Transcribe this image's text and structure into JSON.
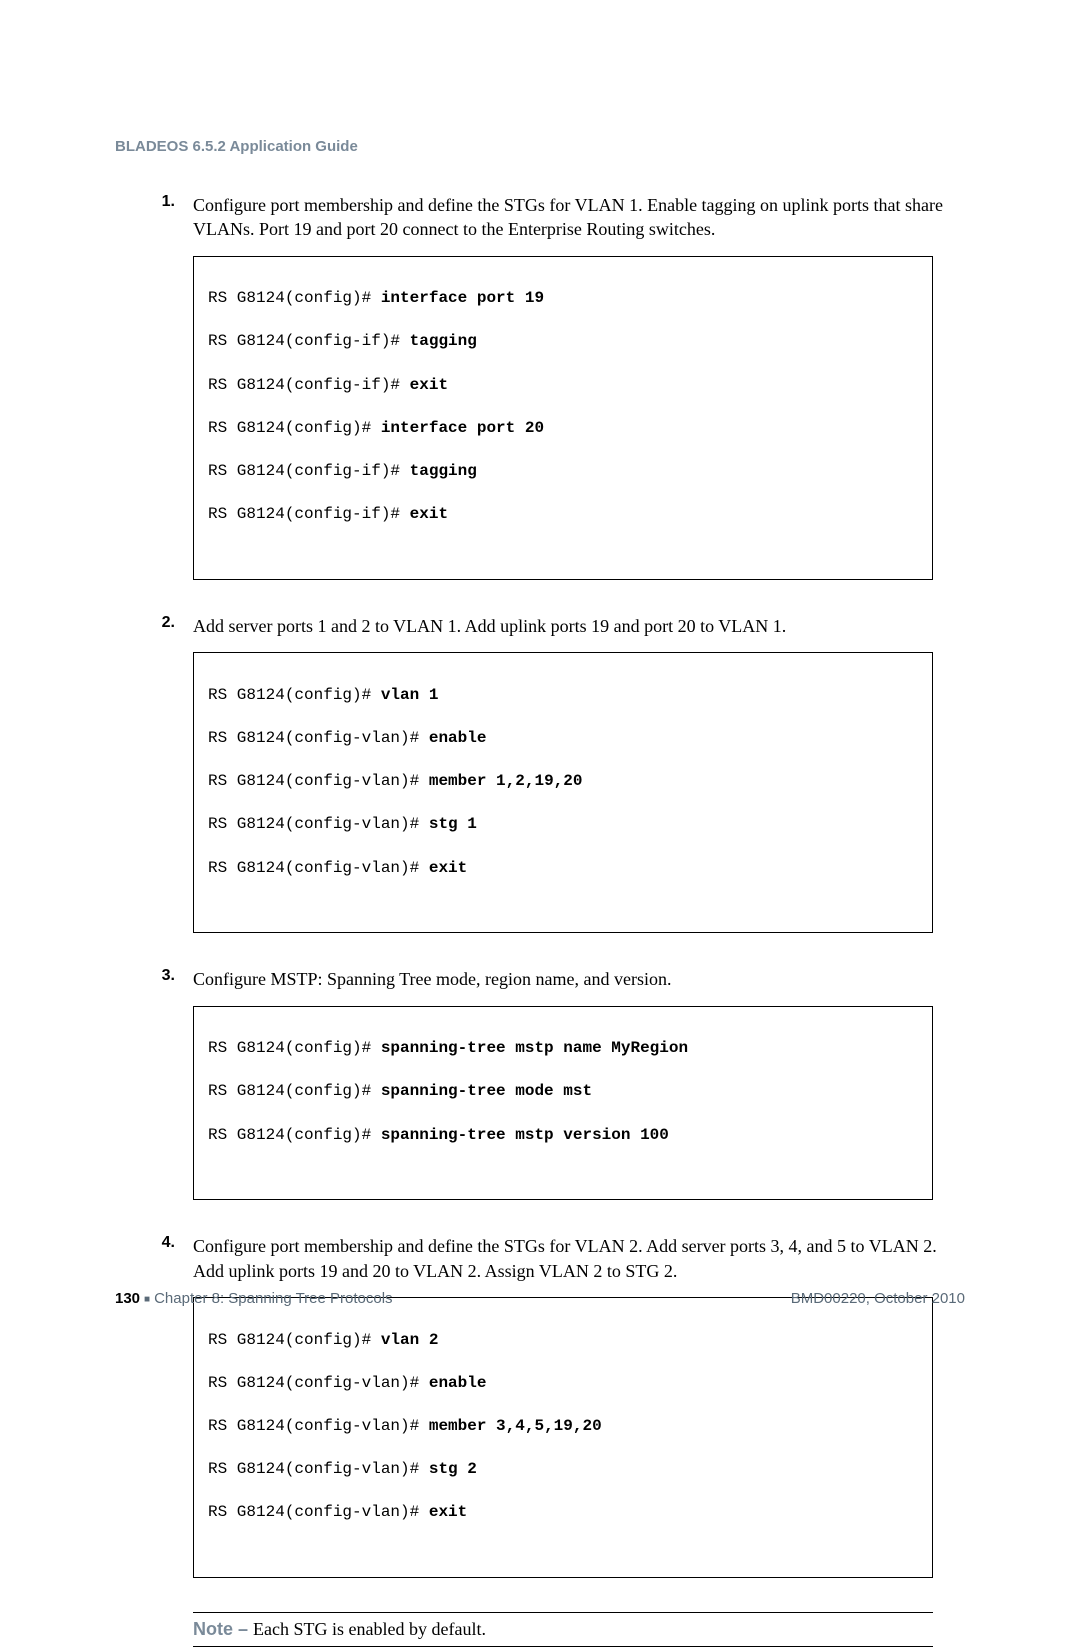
{
  "header": {
    "title": "BLADEOS 6.5.2 Application Guide"
  },
  "steps": [
    {
      "num": "1.",
      "text": "Configure port membership and define the STGs for VLAN 1. Enable tagging on uplink ports that share VLANs. Port 19 and port 20 connect to the Enterprise Routing switches.",
      "code": [
        {
          "prompt": "RS G8124(config)# ",
          "cmd": "interface port 19"
        },
        {
          "prompt": "RS G8124(config-if)# ",
          "cmd": "tagging"
        },
        {
          "prompt": "RS G8124(config-if)# ",
          "cmd": "exit"
        },
        {
          "prompt": "RS G8124(config)# ",
          "cmd": "interface port 20"
        },
        {
          "prompt": "RS G8124(config-if)# ",
          "cmd": "tagging"
        },
        {
          "prompt": "RS G8124(config-if)# ",
          "cmd": "exit"
        }
      ]
    },
    {
      "num": "2.",
      "text": "Add server ports 1 and 2 to VLAN 1. Add uplink ports 19 and port 20 to VLAN 1.",
      "code": [
        {
          "prompt": "RS G8124(config)# ",
          "cmd": "vlan 1"
        },
        {
          "prompt": "RS G8124(config-vlan)# ",
          "cmd": "enable"
        },
        {
          "prompt": "RS G8124(config-vlan)# ",
          "cmd": "member 1,2,19,20"
        },
        {
          "prompt": "RS G8124(config-vlan)# ",
          "cmd": "stg 1"
        },
        {
          "prompt": "RS G8124(config-vlan)# ",
          "cmd": "exit"
        }
      ]
    },
    {
      "num": "3.",
      "text": "Configure MSTP: Spanning Tree mode, region name, and version.",
      "code": [
        {
          "prompt": "RS G8124(config)# ",
          "cmd": "spanning-tree mstp name MyRegion"
        },
        {
          "prompt": "RS G8124(config)# ",
          "cmd": "spanning-tree mode mst"
        },
        {
          "prompt": "RS G8124(config)# ",
          "cmd": "spanning-tree mstp version 100"
        }
      ]
    },
    {
      "num": "4.",
      "text": "Configure port membership and define the STGs for VLAN 2. Add server ports 3, 4, and 5 to VLAN 2. Add uplink ports 19 and 20 to VLAN 2. Assign VLAN 2 to STG 2.",
      "code": [
        {
          "prompt": "RS G8124(config)# ",
          "cmd": "vlan 2"
        },
        {
          "prompt": "RS G8124(config-vlan)# ",
          "cmd": "enable"
        },
        {
          "prompt": "RS G8124(config-vlan)# ",
          "cmd": "member 3,4,5,19,20"
        },
        {
          "prompt": "RS G8124(config-vlan)# ",
          "cmd": "stg 2"
        },
        {
          "prompt": "RS G8124(config-vlan)# ",
          "cmd": "exit"
        }
      ]
    }
  ],
  "note": {
    "label": "Note – ",
    "text": "Each STG is enabled by default."
  },
  "footer": {
    "page": "130",
    "chapter": "Chapter 8: Spanning Tree Protocols",
    "right": "BMD00220, October 2010"
  }
}
